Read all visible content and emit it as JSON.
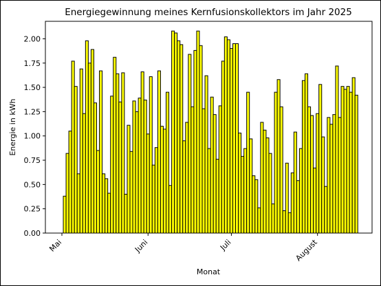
{
  "chart_data": {
    "type": "bar",
    "title": "Energiegewinnung meines Kernfusionskollektors im Jahr 2025",
    "xlabel": "Monat",
    "ylabel": "Energie in kWh",
    "color": "#ffff00",
    "edgecolor": "#000000",
    "categories": [
      "Mai",
      null,
      null,
      null,
      null,
      null,
      null,
      null,
      null,
      null,
      null,
      null,
      null,
      null,
      null,
      null,
      null,
      null,
      null,
      null,
      null,
      null,
      null,
      null,
      null,
      null,
      null,
      null,
      null,
      null,
      null,
      "Juni",
      null,
      null,
      null,
      null,
      null,
      null,
      null,
      null,
      null,
      null,
      null,
      null,
      null,
      null,
      null,
      null,
      null,
      null,
      null,
      null,
      null,
      null,
      null,
      null,
      null,
      null,
      null,
      null,
      null,
      "Juli",
      null,
      null,
      null,
      null,
      null,
      null,
      null,
      null,
      null,
      null,
      null,
      null,
      null,
      null,
      null,
      null,
      null,
      null,
      null,
      null,
      null,
      null,
      null,
      null,
      null,
      null,
      null,
      null,
      null,
      null,
      "August",
      null,
      null,
      null,
      null,
      null,
      null,
      null,
      null,
      null,
      null,
      null,
      null,
      null,
      null
    ],
    "values": [
      null,
      0.38,
      0.82,
      1.05,
      1.77,
      1.51,
      0.61,
      1.69,
      1.23,
      1.98,
      1.75,
      1.89,
      1.34,
      0.85,
      1.67,
      0.61,
      0.56,
      0.41,
      1.41,
      1.81,
      1.64,
      1.35,
      1.65,
      0.4,
      1.11,
      0.84,
      1.36,
      1.25,
      1.39,
      1.66,
      1.37,
      1.02,
      1.61,
      0.7,
      0.88,
      1.67,
      1.1,
      1.07,
      1.45,
      0.49,
      2.08,
      2.06,
      1.98,
      1.94,
      0.95,
      1.14,
      1.84,
      1.3,
      1.88,
      2.08,
      1.93,
      1.28,
      1.62,
      0.87,
      1.4,
      1.22,
      0.76,
      1.31,
      1.77,
      2.02,
      1.99,
      1.9,
      1.95,
      1.95,
      1.03,
      0.79,
      0.87,
      1.45,
      0.97,
      0.59,
      0.55,
      0.26,
      1.14,
      1.06,
      0.98,
      0.82,
      0.3,
      1.45,
      1.58,
      1.3,
      0.23,
      0.72,
      0.21,
      0.62,
      1.04,
      0.54,
      0.87,
      1.57,
      1.64,
      1.3,
      1.21,
      0.67,
      1.23,
      1.53,
      0.99,
      0.48,
      1.19,
      1.12,
      1.22,
      1.72,
      1.19,
      1.51,
      1.48,
      1.51,
      1.45,
      1.6,
      1.42
    ],
    "ylim": [
      0,
      2.18
    ],
    "yticks": [
      {
        "value": 0,
        "label": "0.00"
      },
      {
        "value": 0.25,
        "label": "0.25"
      },
      {
        "value": 0.5,
        "label": "0.50"
      },
      {
        "value": 0.75,
        "label": "0.75"
      },
      {
        "value": 1,
        "label": "1.00"
      },
      {
        "value": 1.25,
        "label": "1.25"
      },
      {
        "value": 1.5,
        "label": "1.50"
      },
      {
        "value": 1.75,
        "label": "1.75"
      },
      {
        "value": 2,
        "label": "2.00"
      }
    ],
    "grid": false
  }
}
